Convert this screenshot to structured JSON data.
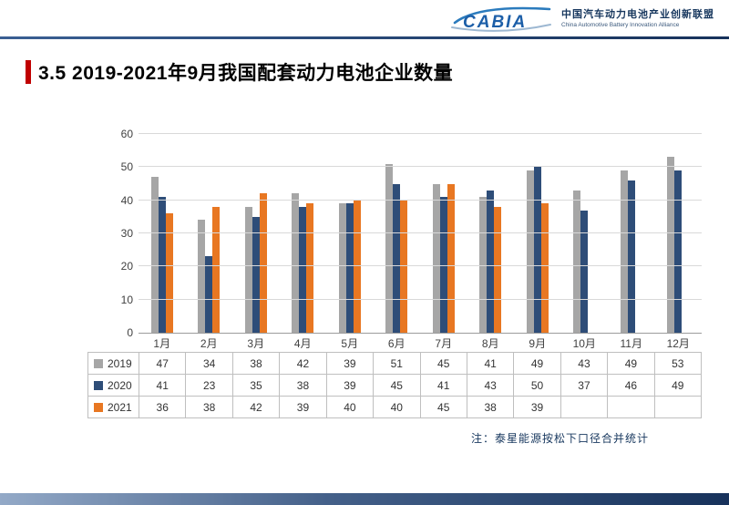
{
  "header": {
    "logo_text": "CABIA",
    "org_cn": "中国汽车动力电池产业创新联盟",
    "org_en": "China Automotive Battery Innovation Alliance"
  },
  "title": "3.5 2019-2021年9月我国配套动力电池企业数量",
  "note": "注：泰星能源按松下口径合并统计",
  "colors": {
    "series_2019": "#a6a6a6",
    "series_2020": "#2e4d78",
    "series_2021": "#e87722",
    "accent_red": "#c00000",
    "header_navy": "#17325b"
  },
  "chart_data": {
    "type": "bar",
    "title": "",
    "xlabel": "",
    "ylabel": "",
    "categories": [
      "1月",
      "2月",
      "3月",
      "4月",
      "5月",
      "6月",
      "7月",
      "8月",
      "9月",
      "10月",
      "11月",
      "12月"
    ],
    "series": [
      {
        "name": "2019",
        "color": "#a6a6a6",
        "values": [
          47,
          34,
          38,
          42,
          39,
          51,
          45,
          41,
          49,
          43,
          49,
          53
        ]
      },
      {
        "name": "2020",
        "color": "#2e4d78",
        "values": [
          41,
          23,
          35,
          38,
          39,
          45,
          41,
          43,
          50,
          37,
          46,
          49
        ]
      },
      {
        "name": "2021",
        "color": "#e87722",
        "values": [
          36,
          38,
          42,
          39,
          40,
          40,
          45,
          38,
          39,
          null,
          null,
          null
        ]
      }
    ],
    "ylim": [
      0,
      60
    ],
    "ytick_step": 10,
    "grid": true,
    "legend_position": "table-left"
  }
}
